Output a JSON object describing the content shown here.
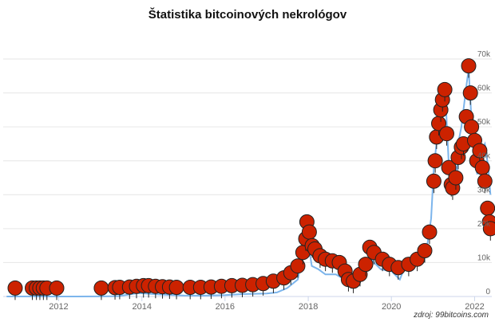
{
  "chart_data": {
    "type": "line",
    "title": "Štatistika bitcoinových nekrológov",
    "source": "zdroj: 99bitcoins.com",
    "xlabel": "",
    "ylabel": "",
    "x_ticks": [
      "2012",
      "2014",
      "2016",
      "2018",
      "2020",
      "2022"
    ],
    "y_ticks": [
      "0",
      "10k",
      "20k",
      "30k",
      "40k",
      "50k",
      "60k",
      "70k"
    ],
    "xlim": [
      "2010-09-01",
      "2022-06-01"
    ],
    "ylim": [
      0,
      78000
    ],
    "grid": true,
    "series": [
      {
        "kind": "line",
        "color": "#7cb5ec",
        "x": [
          "2010-10-01",
          "2011-06-01",
          "2012-01-01",
          "2012-06-01",
          "2013-01-01",
          "2013-06-01",
          "2013-12-01",
          "2014-06-01",
          "2015-01-01",
          "2015-06-01",
          "2016-01-01",
          "2016-06-01",
          "2017-01-01",
          "2017-04-01",
          "2017-07-01",
          "2017-10-01",
          "2017-12-17",
          "2018-02-01",
          "2018-04-01",
          "2018-06-01",
          "2018-09-01",
          "2018-11-15",
          "2018-12-15",
          "2019-02-01",
          "2019-04-01",
          "2019-06-26",
          "2019-08-01",
          "2019-10-01",
          "2020-01-01",
          "2020-03-15",
          "2020-05-01",
          "2020-07-01",
          "2020-09-01",
          "2020-10-15",
          "2020-11-15",
          "2020-12-15",
          "2021-01-08",
          "2021-02-10",
          "2021-03-15",
          "2021-04-14",
          "2021-05-19",
          "2021-06-22",
          "2021-07-20",
          "2021-08-15",
          "2021-09-07",
          "2021-10-20",
          "2021-11-10",
          "2021-12-10",
          "2022-01-01",
          "2022-01-24",
          "2022-03-01",
          "2022-04-01",
          "2022-05-01",
          "2022-05-20"
        ],
        "values": [
          0,
          15,
          6,
          6,
          13,
          100,
          1000,
          600,
          300,
          250,
          430,
          700,
          900,
          1200,
          2500,
          5000,
          19000,
          9000,
          8000,
          6500,
          6500,
          5000,
          3500,
          3500,
          5000,
          12000,
          10000,
          8000,
          7500,
          5000,
          9000,
          9500,
          11000,
          12000,
          16000,
          23000,
          38000,
          48000,
          57000,
          63000,
          39000,
          32000,
          31000,
          46000,
          50000,
          62000,
          67000,
          49000,
          47000,
          36000,
          43000,
          45000,
          38000,
          30000
        ]
      },
      {
        "kind": "obituary-markers",
        "color": "#cc2200",
        "x": [
          "2010-12-15",
          "2011-05-15",
          "2011-06-20",
          "2011-07-20",
          "2011-08-20",
          "2011-09-20",
          "2011-12-15",
          "2013-01-10",
          "2013-05-10",
          "2013-06-20",
          "2013-09-15",
          "2013-11-15",
          "2014-01-15",
          "2014-03-01",
          "2014-05-01",
          "2014-07-01",
          "2014-09-01",
          "2014-11-01",
          "2015-03-01",
          "2015-06-01",
          "2015-09-01",
          "2015-12-01",
          "2016-03-01",
          "2016-06-01",
          "2016-09-01",
          "2016-12-01",
          "2017-03-01",
          "2017-06-01",
          "2017-08-01",
          "2017-10-01",
          "2017-11-15",
          "2017-12-10",
          "2017-12-20",
          "2018-01-10",
          "2018-02-05",
          "2018-03-01",
          "2018-04-15",
          "2018-06-01",
          "2018-08-01",
          "2018-10-01",
          "2018-11-20",
          "2018-12-20",
          "2019-02-01",
          "2019-04-01",
          "2019-05-20",
          "2019-06-26",
          "2019-08-01",
          "2019-10-15",
          "2019-12-15",
          "2020-03-01",
          "2020-06-01",
          "2020-08-15",
          "2020-10-20",
          "2020-12-01",
          "2021-01-08",
          "2021-01-20",
          "2021-02-01",
          "2021-02-20",
          "2021-03-10",
          "2021-03-25",
          "2021-04-14",
          "2021-05-01",
          "2021-05-19",
          "2021-06-10",
          "2021-06-22",
          "2021-07-20",
          "2021-08-10",
          "2021-09-07",
          "2021-09-25",
          "2021-10-20",
          "2021-11-10",
          "2021-11-25",
          "2021-12-05",
          "2022-01-01",
          "2022-01-20",
          "2022-02-15",
          "2022-03-10",
          "2022-04-01",
          "2022-04-25",
          "2022-05-12",
          "2022-05-20"
        ],
        "values": [
          2500,
          2500,
          2500,
          2500,
          2500,
          2500,
          2500,
          2500,
          2600,
          2700,
          2800,
          3000,
          3200,
          3200,
          3000,
          2900,
          2800,
          2700,
          2700,
          2700,
          2800,
          3000,
          3200,
          3300,
          3500,
          3800,
          4500,
          5500,
          7000,
          9000,
          13000,
          17000,
          22000,
          19000,
          15000,
          14000,
          12000,
          11000,
          10500,
          10000,
          7500,
          5000,
          4500,
          6500,
          9500,
          14500,
          13000,
          11000,
          9500,
          8500,
          9500,
          11000,
          13500,
          19000,
          34000,
          40000,
          47000,
          51000,
          55000,
          58000,
          61000,
          48000,
          38000,
          33000,
          32000,
          35000,
          41000,
          44000,
          45000,
          53000,
          68000,
          60000,
          50000,
          46000,
          40000,
          43000,
          38000,
          34000,
          26000,
          22000,
          20000
        ]
      }
    ]
  }
}
